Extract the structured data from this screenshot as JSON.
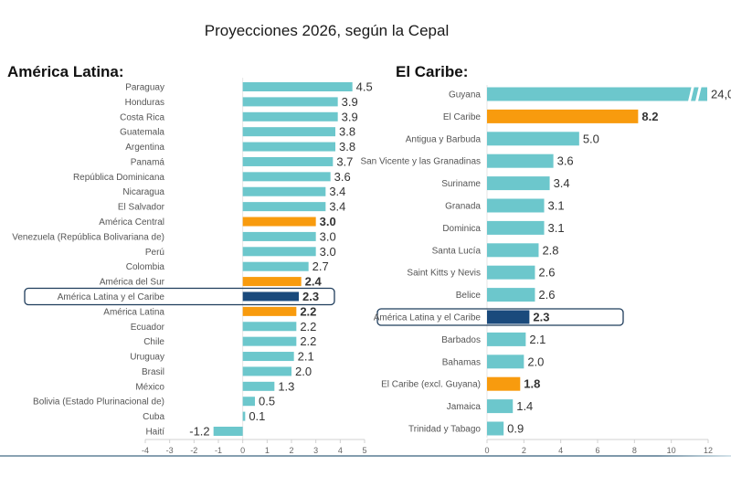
{
  "title": "Proyecciones 2026, según la Cepal",
  "colors": {
    "country": "#6cc7cc",
    "subregion": "#f89b0e",
    "region": "#1a4a7c",
    "highlight_border": "#1f3d5c"
  },
  "chart_data": [
    {
      "type": "bar",
      "orientation": "horizontal",
      "title": "América Latina:",
      "categories": [
        "Paraguay",
        "Honduras",
        "Costa Rica",
        "Guatemala",
        "Argentina",
        "Panamá",
        "República Dominicana",
        "Nicaragua",
        "El Salvador",
        "América Central",
        "Venezuela (República Bolivariana de)",
        "Perú",
        "Colombia",
        "América del Sur",
        "América Latina y el Caribe",
        "América Latina",
        "Ecuador",
        "Chile",
        "Uruguay",
        "Brasil",
        "México",
        "Bolivia (Estado Plurinacional de)",
        "Cuba",
        "Haití"
      ],
      "values": [
        4.5,
        3.9,
        3.9,
        3.8,
        3.8,
        3.7,
        3.6,
        3.4,
        3.4,
        3.0,
        3.0,
        3.0,
        2.7,
        2.4,
        2.3,
        2.2,
        2.2,
        2.2,
        2.1,
        2.0,
        1.3,
        0.5,
        0.1,
        -1.2
      ],
      "value_labels": [
        "4.5",
        "3.9",
        "3.9",
        "3.8",
        "3.8",
        "3.7",
        "3.6",
        "3.4",
        "3.4",
        "3.0",
        "3.0",
        "3.0",
        "2.7",
        "2.4",
        "2.3",
        "2.2",
        "2.2",
        "2.2",
        "2.1",
        "2.0",
        "1.3",
        "0.5",
        "0.1",
        "-1.2"
      ],
      "kinds": [
        "country",
        "country",
        "country",
        "country",
        "country",
        "country",
        "country",
        "country",
        "country",
        "subregion",
        "country",
        "country",
        "country",
        "subregion",
        "region",
        "subregion",
        "country",
        "country",
        "country",
        "country",
        "country",
        "country",
        "country",
        "country"
      ],
      "highlighted": "América Latina y el Caribe",
      "xlim": [
        -4,
        5
      ],
      "xticks": [
        "-4",
        "-3",
        "-2",
        "-1",
        "0",
        "1",
        "2",
        "3",
        "4",
        "5"
      ],
      "grid": false,
      "legend": "none"
    },
    {
      "type": "bar",
      "orientation": "horizontal",
      "title": "El Caribe:",
      "categories": [
        "Guyana",
        "El Caribe",
        "Antigua y Barbuda",
        "San Vicente y las Granadinas",
        "Suriname",
        "Granada",
        "Dominica",
        "Santa Lucía",
        "Saint Kitts y Nevis",
        "Belice",
        "América Latina y el Caribe",
        "Barbados",
        "Bahamas",
        "El Caribe (excl. Guyana)",
        "Jamaica",
        "Trinidad y Tabago"
      ],
      "values": [
        24.0,
        8.2,
        5.0,
        3.6,
        3.4,
        3.1,
        3.1,
        2.8,
        2.6,
        2.6,
        2.3,
        2.1,
        2.0,
        1.8,
        1.4,
        0.9
      ],
      "value_labels": [
        "24,0",
        "8.2",
        "5.0",
        "3.6",
        "3.4",
        "3.1",
        "3.1",
        "2.8",
        "2.6",
        "2.6",
        "2.3",
        "2.1",
        "2.0",
        "1.8",
        "1.4",
        "0.9"
      ],
      "kinds": [
        "country",
        "subregion",
        "country",
        "country",
        "country",
        "country",
        "country",
        "country",
        "country",
        "country",
        "region",
        "country",
        "country",
        "subregion",
        "country",
        "country"
      ],
      "broken_axis_bar": "Guyana",
      "highlighted": "América Latina y el Caribe",
      "xlim": [
        0,
        12
      ],
      "xticks": [
        "0",
        "2",
        "4",
        "6",
        "8",
        "10",
        "12"
      ],
      "grid": false,
      "legend": "none"
    }
  ]
}
